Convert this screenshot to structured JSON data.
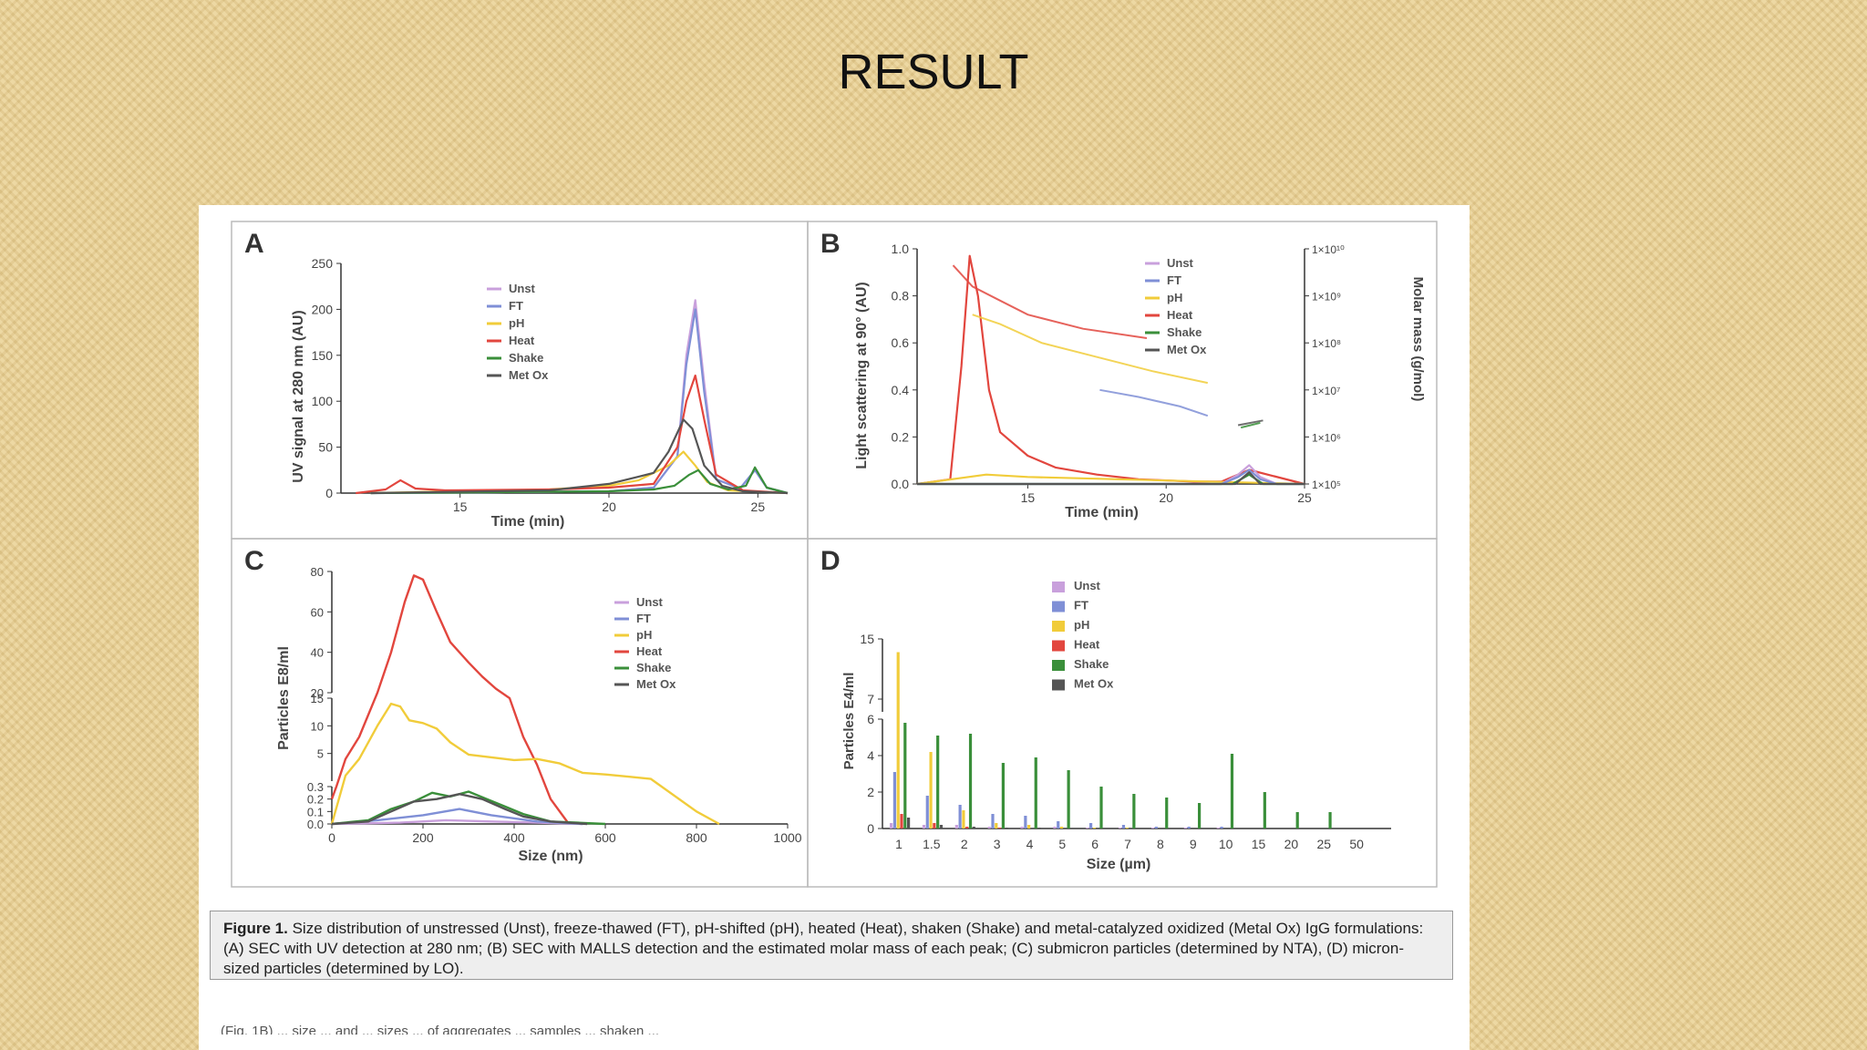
{
  "slide": {
    "title": "RESULT"
  },
  "figure": {
    "caption_label": "Figure 1.",
    "caption_text": "Size distribution of unstressed (Unst), freeze-thawed (FT), pH-shifted (pH), heated (Heat), shaken (Shake) and metal-catalyzed oxidized (Metal Ox) IgG formulations: (A) SEC with UV detection at 280 nm; (B) SEC with MALLS detection and the estimated molar mass of each peak; (C) submicron particles (determined by NTA), (D) micron-sized particles (determined by LO).",
    "truncated_line": "(Fig. 1B) ... size ... and ... sizes ... of aggregates ... samples ... shaken ..."
  },
  "colors": {
    "Unst": "#c9a0dc",
    "FT": "#7f8fd6",
    "pH": "#f1cc3a",
    "Heat": "#e2463e",
    "Shake": "#3a8f3a",
    "Met Ox": "#555555"
  },
  "chart_data": [
    {
      "panel": "A",
      "type": "line",
      "xlabel": "Time (min)",
      "ylabel": "UV signal at 280 nm (AU)",
      "xlim": [
        11,
        26
      ],
      "ylim": [
        0,
        250
      ],
      "xticks": [
        "15",
        "20",
        "25"
      ],
      "yticks": [
        "0",
        "50",
        "100",
        "150",
        "200",
        "250"
      ],
      "legend": [
        "Unst",
        "FT",
        "pH",
        "Heat",
        "Shake",
        "Met Ox"
      ],
      "series": [
        {
          "name": "Unst",
          "x": [
            12,
            20,
            21.5,
            22.3,
            22.6,
            22.9,
            23.2,
            23.6,
            24.4,
            24.9,
            25.3,
            26
          ],
          "y": [
            0,
            2,
            6,
            40,
            150,
            210,
            120,
            15,
            5,
            25,
            6,
            0
          ]
        },
        {
          "name": "FT",
          "x": [
            12,
            20,
            21.5,
            22.3,
            22.6,
            22.9,
            23.2,
            23.6,
            24.4,
            24.9,
            25.3,
            26
          ],
          "y": [
            0,
            2,
            6,
            40,
            140,
            200,
            110,
            15,
            5,
            25,
            6,
            0
          ]
        },
        {
          "name": "pH",
          "x": [
            12,
            18,
            20,
            21,
            22,
            22.5,
            22.9,
            23.3,
            24,
            26
          ],
          "y": [
            0,
            4,
            8,
            14,
            30,
            45,
            30,
            12,
            3,
            0
          ]
        },
        {
          "name": "Heat",
          "x": [
            11.5,
            12.5,
            13.0,
            13.5,
            14.5,
            18,
            20,
            21.5,
            22.3,
            22.6,
            22.9,
            23.2,
            23.6,
            24.5,
            26
          ],
          "y": [
            0,
            4,
            14,
            5,
            3,
            4,
            6,
            10,
            50,
            100,
            128,
            80,
            20,
            3,
            0
          ]
        },
        {
          "name": "Shake",
          "x": [
            12,
            20,
            21.5,
            22.2,
            22.7,
            23.0,
            23.4,
            24,
            24.6,
            24.9,
            25.3,
            26
          ],
          "y": [
            0,
            2,
            4,
            8,
            20,
            25,
            10,
            4,
            8,
            28,
            6,
            0
          ]
        },
        {
          "name": "Met Ox",
          "x": [
            12,
            18,
            20,
            21,
            21.5,
            22,
            22.5,
            22.8,
            23.2,
            23.8,
            24.5,
            26
          ],
          "y": [
            0,
            3,
            10,
            18,
            22,
            45,
            80,
            70,
            30,
            8,
            2,
            0
          ]
        }
      ]
    },
    {
      "panel": "B",
      "type": "line",
      "xlabel": "Time (min)",
      "ylabel": "Light scattering at 90° (AU)",
      "y2label": "Molar mass (g/mol)",
      "xlim": [
        11,
        25
      ],
      "ylim": [
        0,
        1.0
      ],
      "xticks": [
        "15",
        "20",
        "25"
      ],
      "yticks": [
        "0.0",
        "0.2",
        "0.4",
        "0.6",
        "0.8",
        "1.0"
      ],
      "y2ticks": [
        "1×10⁵",
        "1×10⁶",
        "1×10⁷",
        "1×10⁸",
        "1×10⁹",
        "1×10¹⁰"
      ],
      "legend": [
        "Unst",
        "FT",
        "pH",
        "Heat",
        "Shake",
        "Met Ox"
      ],
      "series": [
        {
          "name": "Heat",
          "x": [
            11,
            12.2,
            12.6,
            12.9,
            13.2,
            13.6,
            14,
            15,
            16,
            17.5,
            19,
            21,
            22,
            23,
            25
          ],
          "y": [
            0,
            0.02,
            0.5,
            0.97,
            0.8,
            0.4,
            0.22,
            0.12,
            0.07,
            0.04,
            0.02,
            0.01,
            0.01,
            0.06,
            0.0
          ]
        },
        {
          "name": "pH",
          "x": [
            11,
            13.5,
            15,
            25
          ],
          "y": [
            0,
            0.04,
            0.03,
            0.0
          ]
        },
        {
          "name": "Unst",
          "x": [
            11,
            22,
            22.6,
            23,
            23.4,
            24,
            25
          ],
          "y": [
            0,
            0.0,
            0.04,
            0.08,
            0.03,
            0.0,
            0.0
          ]
        },
        {
          "name": "FT",
          "x": [
            11,
            22,
            22.6,
            23,
            23.4,
            24,
            25
          ],
          "y": [
            0,
            0.0,
            0.03,
            0.06,
            0.02,
            0.0,
            0.0
          ]
        },
        {
          "name": "Shake",
          "x": [
            11,
            22.4,
            23,
            23.5,
            25
          ],
          "y": [
            0,
            0.0,
            0.04,
            0.0,
            0.0
          ]
        },
        {
          "name": "Met Ox",
          "x": [
            11,
            22.5,
            23,
            23.4,
            25
          ],
          "y": [
            0,
            0.0,
            0.05,
            0.0,
            0.0
          ]
        }
      ],
      "molar_mass_series": [
        {
          "name": "Heat",
          "x": [
            12.3,
            13,
            14,
            15,
            17,
            19.3
          ],
          "y": [
            0.93,
            0.84,
            0.78,
            0.72,
            0.66,
            0.62
          ]
        },
        {
          "name": "pH",
          "x": [
            13,
            14,
            15.5,
            17.5,
            19.5,
            21.5
          ],
          "y": [
            0.72,
            0.68,
            0.6,
            0.54,
            0.48,
            0.43
          ]
        },
        {
          "name": "FT",
          "x": [
            17.6,
            19,
            20.5,
            21.5
          ],
          "y": [
            0.4,
            0.37,
            0.33,
            0.29
          ]
        },
        {
          "name": "Met Ox",
          "x": [
            22.6,
            23.5
          ],
          "y": [
            0.25,
            0.27
          ]
        },
        {
          "name": "Shake",
          "x": [
            22.7,
            23.4
          ],
          "y": [
            0.24,
            0.26
          ]
        }
      ]
    },
    {
      "panel": "C",
      "type": "line",
      "xlabel": "Size (nm)",
      "ylabel": "Particles E8/ml",
      "xlim": [
        0,
        1000
      ],
      "ylim": [
        0,
        80
      ],
      "xticks": [
        "0",
        "200",
        "400",
        "600",
        "800",
        "1000"
      ],
      "yticks": [
        "0.0",
        "0.1",
        "0.2",
        "0.3",
        "5",
        "10",
        "15",
        "20",
        "40",
        "60",
        "80"
      ],
      "legend": [
        "Unst",
        "FT",
        "pH",
        "Heat",
        "Shake",
        "Met Ox"
      ],
      "series": [
        {
          "name": "Heat",
          "x": [
            0,
            10,
            30,
            60,
            100,
            130,
            160,
            180,
            200,
            230,
            260,
            300,
            330,
            360,
            390,
            420,
            450,
            480,
            520
          ],
          "y": [
            0.2,
            0.3,
            4,
            8,
            20,
            40,
            65,
            78,
            76,
            60,
            45,
            35,
            28,
            22,
            15,
            8,
            3,
            0.2,
            0
          ]
        },
        {
          "name": "pH",
          "x": [
            0,
            30,
            60,
            100,
            130,
            150,
            170,
            200,
            230,
            260,
            300,
            400,
            450,
            500,
            550,
            600,
            650,
            700,
            800,
            850
          ],
          "y": [
            0,
            1,
            4,
            10,
            14,
            13.5,
            11,
            10.5,
            9.5,
            7,
            4.8,
            3.8,
            4,
            3.2,
            1.5,
            1.2,
            0.8,
            0.4,
            0.1,
            0
          ]
        },
        {
          "name": "Unst",
          "x": [
            0,
            150,
            250,
            350,
            450,
            550
          ],
          "y": [
            0,
            0.01,
            0.03,
            0.02,
            0.01,
            0
          ]
        },
        {
          "name": "FT",
          "x": [
            0,
            100,
            200,
            280,
            350,
            450,
            550
          ],
          "y": [
            0,
            0.03,
            0.07,
            0.12,
            0.07,
            0.02,
            0
          ]
        },
        {
          "name": "Shake",
          "x": [
            0,
            80,
            130,
            180,
            220,
            260,
            300,
            340,
            380,
            420,
            480,
            540,
            600
          ],
          "y": [
            0,
            0.03,
            0.12,
            0.18,
            0.25,
            0.22,
            0.26,
            0.2,
            0.14,
            0.08,
            0.02,
            0.01,
            0
          ]
        },
        {
          "name": "Met Ox",
          "x": [
            0,
            80,
            130,
            180,
            230,
            280,
            330,
            380,
            420,
            480,
            560
          ],
          "y": [
            0,
            0.02,
            0.1,
            0.18,
            0.2,
            0.24,
            0.2,
            0.12,
            0.06,
            0.02,
            0
          ]
        }
      ]
    },
    {
      "panel": "D",
      "type": "bar",
      "xlabel": "Size (µm)",
      "ylabel": "Particles E4/ml",
      "categories": [
        "1",
        "1.5",
        "2",
        "3",
        "4",
        "5",
        "6",
        "7",
        "8",
        "9",
        "10",
        "15",
        "20",
        "25",
        "50"
      ],
      "yticks": [
        "0",
        "2",
        "4",
        "6",
        "7",
        "15"
      ],
      "ylim": [
        0,
        15
      ],
      "legend": [
        "Unst",
        "FT",
        "pH",
        "Heat",
        "Shake",
        "Met Ox"
      ],
      "series": [
        {
          "name": "Unst",
          "values": [
            0.3,
            0.2,
            0.2,
            0.1,
            0.1,
            0.1,
            0.05,
            0.05,
            0.05,
            0.05,
            0.05,
            0,
            0,
            0,
            0
          ]
        },
        {
          "name": "FT",
          "values": [
            3.1,
            1.8,
            1.3,
            0.8,
            0.7,
            0.4,
            0.3,
            0.2,
            0.1,
            0.1,
            0.1,
            0,
            0,
            0,
            0
          ]
        },
        {
          "name": "pH",
          "values": [
            13.0,
            4.2,
            1.0,
            0.3,
            0.2,
            0.1,
            0.05,
            0.05,
            0,
            0,
            0,
            0,
            0,
            0,
            0
          ]
        },
        {
          "name": "Heat",
          "values": [
            0.8,
            0.3,
            0.1,
            0.05,
            0,
            0,
            0,
            0,
            0,
            0,
            0,
            0,
            0,
            0,
            0
          ]
        },
        {
          "name": "Shake",
          "values": [
            5.8,
            5.1,
            5.2,
            3.6,
            3.9,
            3.2,
            2.3,
            1.9,
            1.7,
            1.4,
            4.1,
            2.0,
            0.9,
            0.9,
            0
          ]
        },
        {
          "name": "Met Ox",
          "values": [
            0.6,
            0.2,
            0.1,
            0.05,
            0.05,
            0,
            0,
            0,
            0,
            0,
            0,
            0,
            0,
            0,
            0
          ]
        }
      ]
    }
  ]
}
